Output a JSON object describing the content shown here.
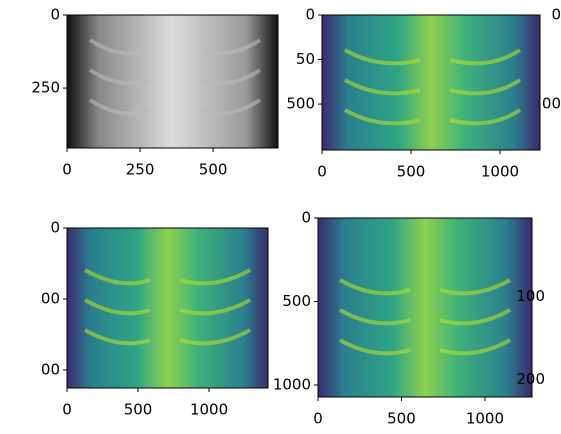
{
  "chart_data": [
    {
      "type": "image",
      "xlim": [
        0,
        722
      ],
      "ylim": [
        455,
        0
      ],
      "xticks": [
        0,
        250,
        500
      ],
      "yticks": [
        0,
        250
      ]
    },
    {
      "type": "image",
      "xlim": [
        0,
        1225
      ],
      "ylim": [
        758,
        0
      ],
      "xticks": [
        0,
        500,
        1000
      ],
      "yticks": [
        0,
        {
          "value": 250,
          "label": "50"
        },
        500
      ]
    },
    {
      "type": "image",
      "xlim": [
        0,
        1415
      ],
      "ylim": [
        1127,
        0
      ],
      "xticks": [
        0,
        500,
        1000
      ],
      "yticks": [
        0,
        {
          "value": 500,
          "label": "00"
        },
        {
          "value": 1000,
          "label": "00"
        }
      ]
    },
    {
      "type": "image",
      "xlim": [
        0,
        1282
      ],
      "ylim": [
        1072,
        0
      ],
      "xticks": [
        0,
        500,
        1000
      ],
      "yticks": [
        0,
        500,
        1000
      ]
    },
    {
      "type": "image",
      "ylim": [
        760,
        0
      ],
      "yticks": [
        0,
        {
          "value": 500,
          "label": "00"
        }
      ]
    },
    {
      "type": "image",
      "ylim": [
        225,
        0
      ],
      "yticks": [
        100,
        200
      ]
    }
  ]
}
